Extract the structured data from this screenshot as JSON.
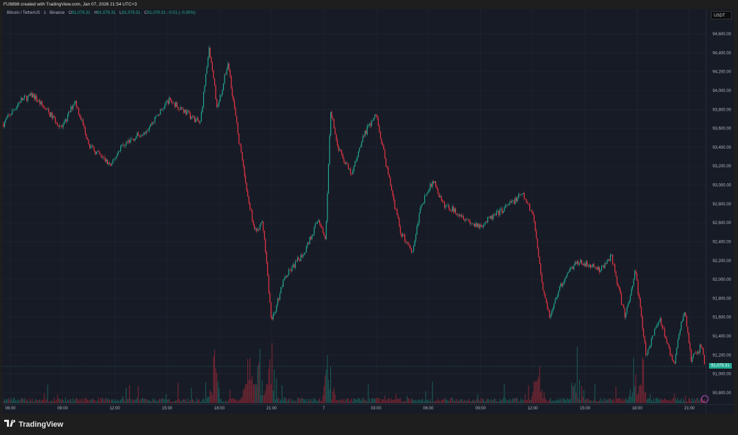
{
  "header": {
    "caption": "FU9898 created with TradingView.com, Jan 07, 2026 21:54 UTC+3"
  },
  "legend": {
    "symbol": "Bitcoin / TetherUS · 1 · Binance",
    "o_label": "O",
    "o": "91,079.31",
    "h_label": "H",
    "h": "91,079.31",
    "l_label": "L",
    "l": "91,079.31",
    "c_label": "C",
    "c": "91,079.31",
    "change": "−0.01 (−0.00%)"
  },
  "currency_button": "USDT",
  "last_price": "91,079.31",
  "brand": "TradingView",
  "colors": {
    "up": "#22ab94",
    "down": "#f23645",
    "bg": "#171b26",
    "grid": "#222631"
  },
  "chart_data": {
    "type": "candlestick",
    "title": "Bitcoin / TetherUS · 1 · Binance",
    "x_unit": "hours since Jan 6 06:00",
    "price_ticks": [
      "94,600.00",
      "94,400.00",
      "94,200.00",
      "94,000.00",
      "93,800.00",
      "93,600.00",
      "93,400.00",
      "93,200.00",
      "93,000.00",
      "92,800.00",
      "92,600.00",
      "92,400.00",
      "92,200.00",
      "92,000.00",
      "91,800.00",
      "91,600.00",
      "91,400.00",
      "91,200.00",
      "91,000.00",
      "90,800.00"
    ],
    "price_values": [
      94600,
      94400,
      94200,
      94000,
      93800,
      93600,
      93400,
      93200,
      93000,
      92800,
      92600,
      92400,
      92200,
      92000,
      91800,
      91600,
      91400,
      91200,
      91000,
      90800
    ],
    "time_ticks": [
      "06:00",
      "09:00",
      "12:00",
      "15:00",
      "18:00",
      "21:00",
      "7",
      "03:00",
      "06:00",
      "09:00",
      "12:00",
      "15:00",
      "18:00",
      "21:00"
    ],
    "time_values": [
      0,
      3,
      6,
      9,
      12,
      15,
      18,
      21,
      24,
      27,
      30,
      33,
      36,
      39
    ],
    "ylim": [
      90700,
      94750
    ],
    "price_path": [
      [
        -0.4,
        93650
      ],
      [
        0.6,
        93900
      ],
      [
        1.3,
        93950
      ],
      [
        3.0,
        93600
      ],
      [
        3.7,
        93900
      ],
      [
        4.6,
        93400
      ],
      [
        5.8,
        93200
      ],
      [
        6.3,
        93400
      ],
      [
        7.9,
        93600
      ],
      [
        9.1,
        93900
      ],
      [
        9.9,
        93800
      ],
      [
        10.9,
        93650
      ],
      [
        11.4,
        94450
      ],
      [
        11.9,
        93800
      ],
      [
        12.5,
        94300
      ],
      [
        13.1,
        93500
      ],
      [
        13.7,
        92800
      ],
      [
        14.1,
        92500
      ],
      [
        14.5,
        92600
      ],
      [
        15.0,
        91550
      ],
      [
        15.7,
        92000
      ],
      [
        16.9,
        92300
      ],
      [
        17.7,
        92650
      ],
      [
        18.1,
        92400
      ],
      [
        18.4,
        93800
      ],
      [
        18.8,
        93400
      ],
      [
        19.6,
        93100
      ],
      [
        20.2,
        93500
      ],
      [
        21.0,
        93750
      ],
      [
        21.6,
        93200
      ],
      [
        22.4,
        92500
      ],
      [
        23.1,
        92300
      ],
      [
        23.6,
        92800
      ],
      [
        24.3,
        93050
      ],
      [
        24.8,
        92800
      ],
      [
        25.8,
        92700
      ],
      [
        26.8,
        92550
      ],
      [
        28.0,
        92700
      ],
      [
        29.4,
        92900
      ],
      [
        30.0,
        92700
      ],
      [
        30.6,
        91900
      ],
      [
        31.0,
        91600
      ],
      [
        31.5,
        91900
      ],
      [
        32.5,
        92200
      ],
      [
        33.9,
        92100
      ],
      [
        34.5,
        92250
      ],
      [
        35.3,
        91600
      ],
      [
        35.9,
        92100
      ],
      [
        36.5,
        91200
      ],
      [
        37.3,
        91600
      ],
      [
        38.1,
        91100
      ],
      [
        38.7,
        91700
      ],
      [
        39.1,
        91150
      ],
      [
        39.7,
        91300
      ],
      [
        39.9,
        91079.31
      ]
    ],
    "volume_spikes_hours": [
      11.7,
      13.7,
      14.3,
      15.0,
      18.3,
      30.3,
      32.5,
      35.9,
      36.4
    ]
  }
}
